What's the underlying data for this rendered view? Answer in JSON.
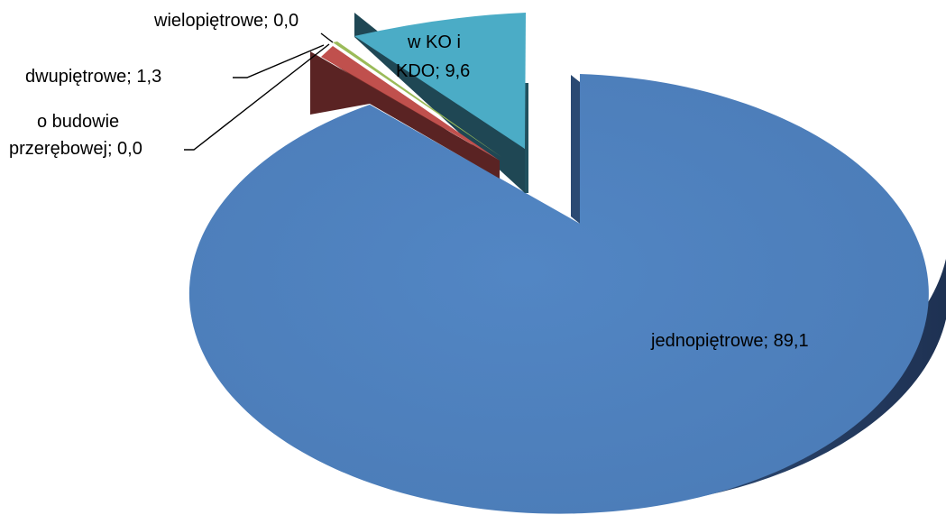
{
  "chart_data": {
    "type": "pie",
    "style": "3d-exploded",
    "title": "",
    "slices": [
      {
        "name": "jednopiętrowe",
        "value": 89.1,
        "color": "#4F81BD",
        "label": "jednopiętrowe; 89,1"
      },
      {
        "name": "o budowie przerębowej",
        "value": 0.0,
        "color": "#5A2323",
        "label_lines": [
          "o budowie",
          "przerębowej; 0,0"
        ]
      },
      {
        "name": "dwupiętrowe",
        "value": 1.3,
        "color": "#C0504D",
        "label": "dwupiętrowe; 1,3"
      },
      {
        "name": "wielopiętrowe",
        "value": 0.0,
        "color": "#9BBB59",
        "label": "wielopiętrowe; 0,0"
      },
      {
        "name": "w KO i KDO",
        "value": 9.6,
        "color": "#4BACC6",
        "label_lines": [
          "w KO i",
          "KDO; 9,6"
        ]
      }
    ]
  }
}
